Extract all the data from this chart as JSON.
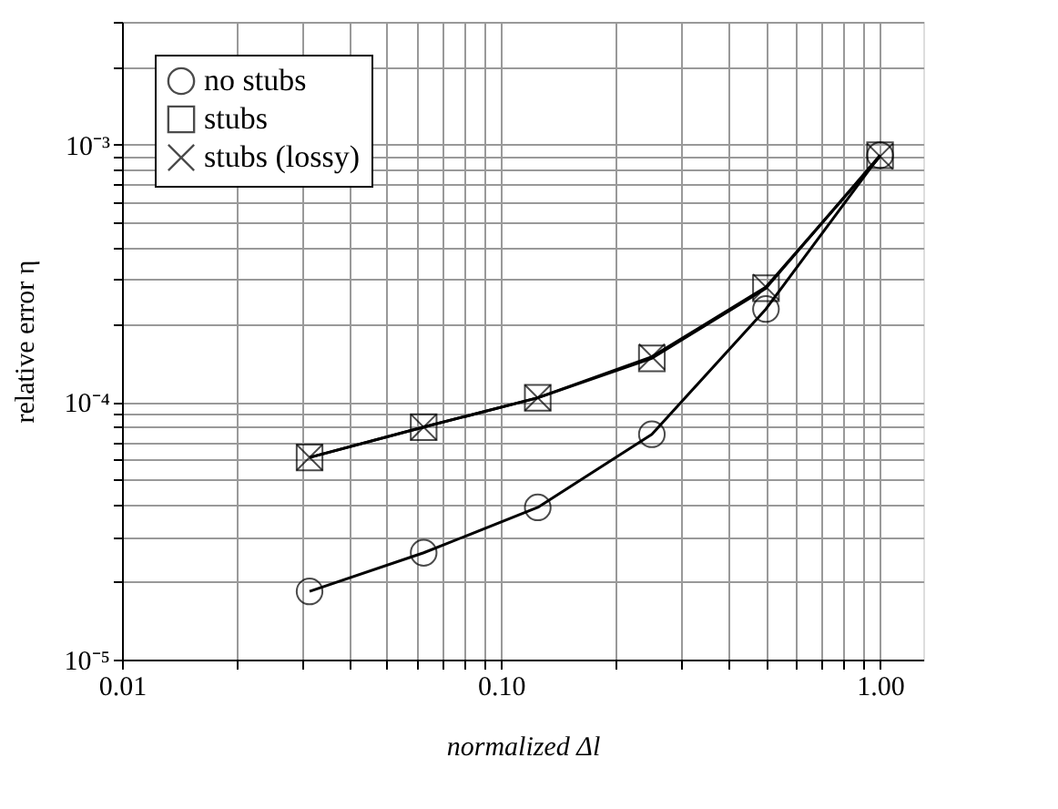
{
  "chart_data": {
    "type": "line",
    "xlabel": "normalized  Δl",
    "ylabel": "relative error η",
    "log": "xy",
    "grid": true,
    "legend": "top left",
    "line_style": "solid",
    "x": [
      0.03125,
      0.0625,
      0.125,
      0.25,
      0.5,
      1
    ],
    "xlim": [
      0.01,
      1.3
    ],
    "ylim": [
      1e-05,
      0.003
    ],
    "xticks": [
      {
        "value": 0.01,
        "label": "0.01"
      },
      {
        "value": 0.02,
        "label": null
      },
      {
        "value": 0.03,
        "label": null
      },
      {
        "value": 0.04,
        "label": null
      },
      {
        "value": 0.05,
        "label": null
      },
      {
        "value": 0.06,
        "label": null
      },
      {
        "value": 0.07,
        "label": null
      },
      {
        "value": 0.08,
        "label": null
      },
      {
        "value": 0.09,
        "label": null
      },
      {
        "value": 0.1,
        "label": "0.10"
      },
      {
        "value": 0.2,
        "label": null
      },
      {
        "value": 0.3,
        "label": null
      },
      {
        "value": 0.4,
        "label": null
      },
      {
        "value": 0.5,
        "label": null
      },
      {
        "value": 0.6,
        "label": null
      },
      {
        "value": 0.7,
        "label": null
      },
      {
        "value": 0.8,
        "label": null
      },
      {
        "value": 0.9,
        "label": null
      },
      {
        "value": 1,
        "label": "1.00"
      }
    ],
    "yticks": [
      {
        "value": 1e-05,
        "label": "10⁻⁵"
      },
      {
        "value": 2e-05,
        "label": null
      },
      {
        "value": 3e-05,
        "label": null
      },
      {
        "value": 4e-05,
        "label": null
      },
      {
        "value": 5e-05,
        "label": null
      },
      {
        "value": 6e-05,
        "label": null
      },
      {
        "value": 7e-05,
        "label": null
      },
      {
        "value": 8e-05,
        "label": null
      },
      {
        "value": 9e-05,
        "label": null
      },
      {
        "value": 0.0001,
        "label": "10⁻⁴"
      },
      {
        "value": 0.0002,
        "label": null
      },
      {
        "value": 0.0003,
        "label": null
      },
      {
        "value": 0.0004,
        "label": null
      },
      {
        "value": 0.0005,
        "label": null
      },
      {
        "value": 0.0006,
        "label": null
      },
      {
        "value": 0.0007,
        "label": null
      },
      {
        "value": 0.0008,
        "label": null
      },
      {
        "value": 0.0009,
        "label": null
      },
      {
        "value": 0.001,
        "label": "10⁻³"
      },
      {
        "value": 0.002,
        "label": null
      },
      {
        "value": 0.003,
        "label": null
      }
    ],
    "series": [
      {
        "name": "no stubs",
        "color": "#000000",
        "marker": "circle",
        "values": [
          1.84e-05,
          2.6e-05,
          3.9e-05,
          7.5e-05,
          0.00023,
          0.00091
        ]
      },
      {
        "name": "stubs",
        "color": "#000000",
        "marker": "square",
        "values": [
          6.1e-05,
          8e-05,
          0.000104,
          0.000148,
          0.000277,
          0.00091
        ]
      },
      {
        "name": "stubs (lossy)",
        "color": "#000000",
        "marker": "cross",
        "values": [
          6.1e-05,
          8e-05,
          0.000104,
          0.00015,
          0.00028,
          0.0009
        ]
      }
    ]
  }
}
